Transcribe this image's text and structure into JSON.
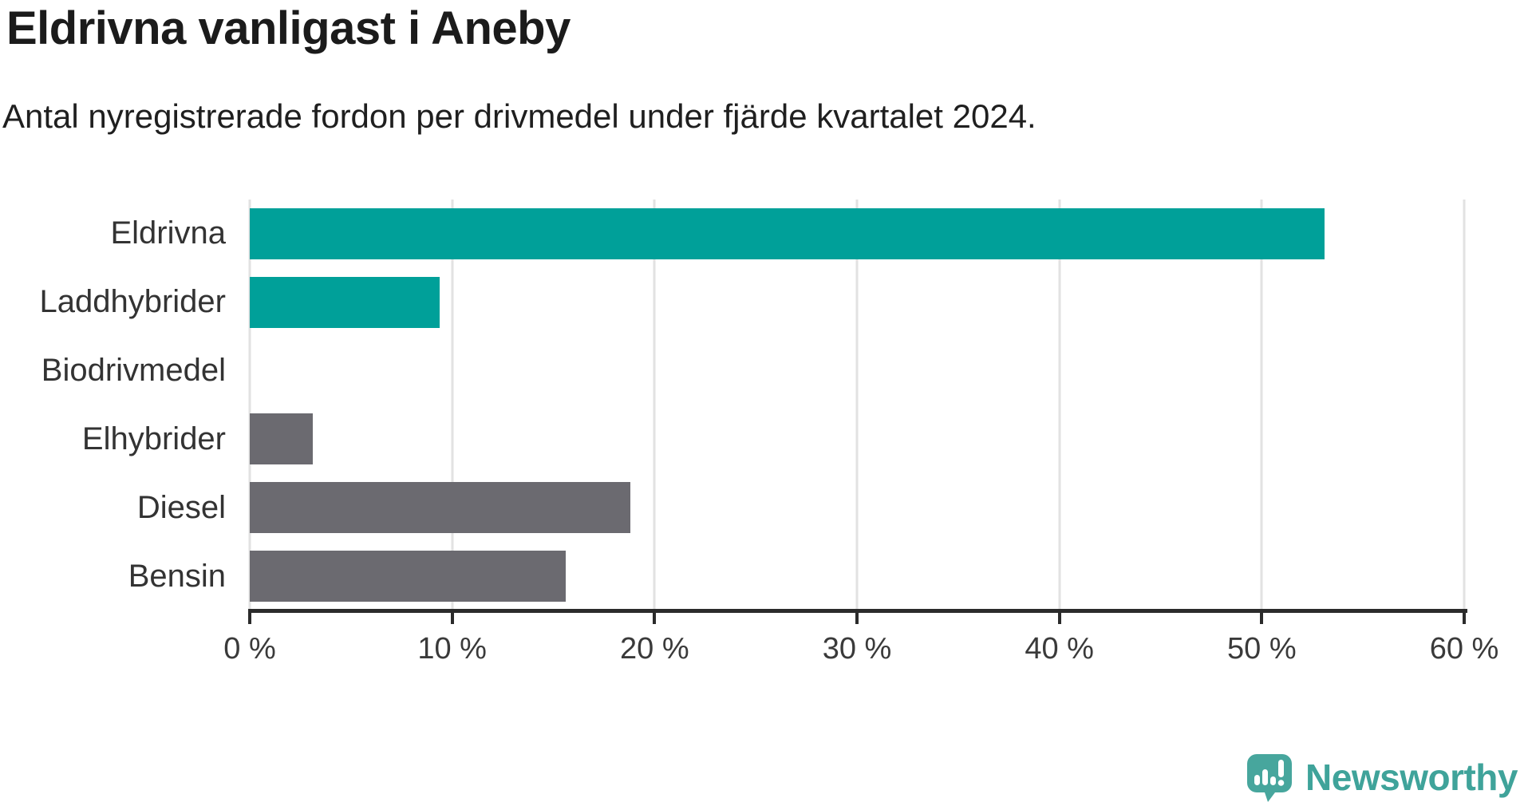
{
  "header": {
    "title": "Eldrivna vanligast i Aneby",
    "subtitle": "Antal nyregistrerade fordon per drivmedel under fjärde kvartalet 2024."
  },
  "chart_data": {
    "type": "bar",
    "orientation": "horizontal",
    "title": "Eldrivna vanligast i Aneby",
    "subtitle": "Antal nyregistrerade fordon per drivmedel under fjärde kvartalet 2024.",
    "categories": [
      "Eldrivna",
      "Laddhybrider",
      "Biodrivmedel",
      "Elhybrider",
      "Diesel",
      "Bensin"
    ],
    "values": [
      53.1,
      9.4,
      0,
      3.1,
      18.8,
      15.6
    ],
    "unit": "%",
    "xlim": [
      0,
      60
    ],
    "tick_values": [
      0,
      10,
      20,
      30,
      40,
      50,
      60
    ],
    "tick_labels": [
      "0 %",
      "10 %",
      "20 %",
      "30 %",
      "40 %",
      "50 %",
      "60 %"
    ],
    "grid": true,
    "bar_colors": [
      "#00a099",
      "#00a099",
      "#00a099",
      "#6b6a70",
      "#6b6a70",
      "#6b6a70"
    ],
    "highlight_color": "#00a099",
    "default_color": "#6b6a70",
    "gridline_color": "#e2e2e2",
    "axis_color": "#2b2b2b"
  },
  "logo": {
    "text": "Newsworthy",
    "color": "#3fa39a",
    "icon": "newsworthy-bubble-chart-icon",
    "icon_color": "#47a69d"
  }
}
